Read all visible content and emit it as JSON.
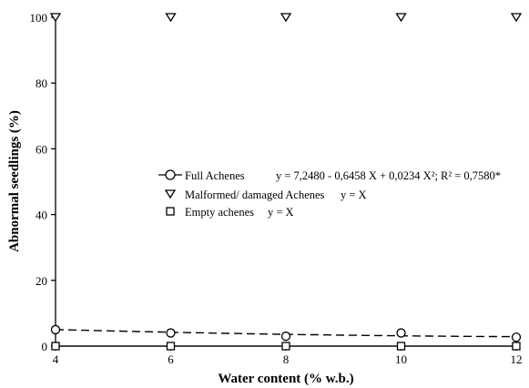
{
  "chart_data": {
    "type": "scatter",
    "xlabel": "Water content (% w.b.)",
    "ylabel": "Abnormal seedlings (%)",
    "xlim": [
      4,
      12
    ],
    "ylim": [
      0,
      100
    ],
    "xticks": [
      "4",
      "6",
      "8",
      "10",
      "12"
    ],
    "yticks": [
      "0",
      "20",
      "40",
      "60",
      "80",
      "100"
    ],
    "grid": false,
    "legend_position": "center-right",
    "series": [
      {
        "name": "Full Achenes",
        "equation": "y = 7,2480 - 0,6458 X + 0,0234 X²; R² = 0,7580*",
        "marker": "circle",
        "x": [
          4,
          6,
          8,
          10,
          12
        ],
        "y": [
          5,
          4,
          3,
          4,
          2.7
        ],
        "fit": [
          7.248,
          -0.6458,
          0.0234
        ],
        "fit_style": "dashed"
      },
      {
        "name": "Malformed/ damaged Achenes",
        "equation": "y = X",
        "marker": "triangle-down",
        "x": [
          4,
          6,
          8,
          10,
          12
        ],
        "y": [
          100,
          100,
          100,
          100,
          100
        ],
        "fit_style": "solid"
      },
      {
        "name": "Empty achenes",
        "equation": "y = X",
        "marker": "square",
        "x": [
          4,
          6,
          8,
          10,
          12
        ],
        "y": [
          0,
          0,
          0,
          0,
          0
        ],
        "fit_style": "solid"
      }
    ]
  }
}
